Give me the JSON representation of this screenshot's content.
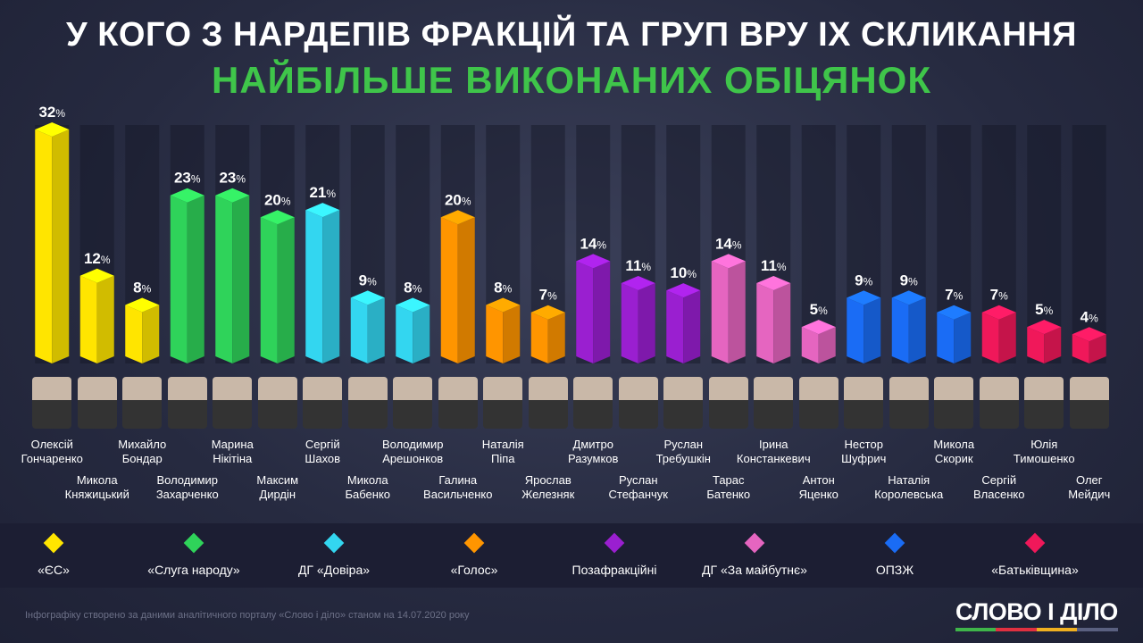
{
  "title_line1": "У КОГО З НАРДЕПІВ ФРАКЦІЙ ТА ГРУП ВРУ IX СКЛИКАННЯ",
  "title_line2": "НАЙБІЛЬШЕ ВИКОНАНИХ ОБІЦЯНОК",
  "chart_data": {
    "type": "bar",
    "title": "У КОГО З НАРДЕПІВ ФРАКЦІЙ ТА ГРУП ВРУ IX СКЛИКАННЯ НАЙБІЛЬШЕ ВИКОНАНИХ ОБІЦЯНОК",
    "unit": "%",
    "ylim": [
      0,
      32
    ],
    "categories": [
      "Олексій Гончаренко",
      "Микола Княжицький",
      "Михайло Бондар",
      "Володимир Захарченко",
      "Марина Нікітіна",
      "Максим Дирдін",
      "Сергій Шахов",
      "Микола Бабенко",
      "Володимир Арешонков",
      "Галина Васильченко",
      "Наталія Піпа",
      "Ярослав Железняк",
      "Дмитро Разумков",
      "Руслан Стефанчук",
      "Руслан Требушкін",
      "Тарас Батенко",
      "Ірина Констанкевич",
      "Антон Яценко",
      "Нестор Шуфрич",
      "Наталія Королевська",
      "Микола Скорик",
      "Сергій Власенко",
      "Юлія Тимошенко",
      "Олег Мейдич"
    ],
    "first_names": [
      "Олексій",
      "Микола",
      "Михайло",
      "Володимир",
      "Марина",
      "Максим",
      "Сергій",
      "Микола",
      "Володимир",
      "Галина",
      "Наталія",
      "Ярослав",
      "Дмитро",
      "Руслан",
      "Руслан",
      "Тарас",
      "Ірина",
      "Антон",
      "Нестор",
      "Наталія",
      "Микола",
      "Сергій",
      "Юлія",
      "Олег"
    ],
    "last_names": [
      "Гончаренко",
      "Княжицький",
      "Бондар",
      "Захарченко",
      "Нікітіна",
      "Дирдін",
      "Шахов",
      "Бабенко",
      "Арешонков",
      "Васильченко",
      "Піпа",
      "Железняк",
      "Разумков",
      "Стефанчук",
      "Требушкін",
      "Батенко",
      "Констанкевич",
      "Яценко",
      "Шуфрич",
      "Королевська",
      "Скорик",
      "Власенко",
      "Тимошенко",
      "Мейдич"
    ],
    "values": [
      32,
      12,
      8,
      23,
      23,
      20,
      21,
      9,
      8,
      20,
      8,
      7,
      14,
      11,
      10,
      14,
      11,
      5,
      9,
      9,
      7,
      7,
      5,
      4
    ],
    "group_index": [
      0,
      0,
      0,
      1,
      1,
      1,
      2,
      2,
      2,
      3,
      3,
      3,
      4,
      4,
      4,
      5,
      5,
      5,
      6,
      6,
      6,
      7,
      7,
      7
    ],
    "legend": [
      {
        "label": "«ЄС»",
        "color": "#ffe500"
      },
      {
        "label": "«Слуга народу»",
        "color": "#2fd35a"
      },
      {
        "label": "ДГ «Довіра»",
        "color": "#33d6f0"
      },
      {
        "label": "«Голос»",
        "color": "#ff9500"
      },
      {
        "label": "Позафракційні",
        "color": "#9a1fd0"
      },
      {
        "label": "ДГ «За майбутнє»",
        "color": "#e565c0"
      },
      {
        "label": "ОПЗЖ",
        "color": "#1a6cf5"
      },
      {
        "label": "«Батьківщина»",
        "color": "#f0185a"
      }
    ],
    "legend_placement": "bottom"
  },
  "footer": "Інфографіку створено за даними аналітичного порталу «Слово і діло» станом на 14.07.2020 року",
  "logo": "СЛОВО І ДІЛО"
}
